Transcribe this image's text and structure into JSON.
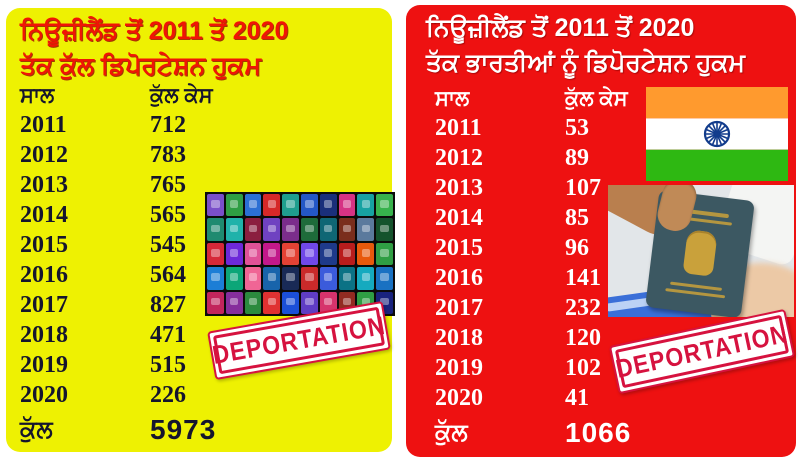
{
  "left_panel": {
    "title_line1": "ਨਿਊਜ਼ੀਲੈਂਡ ਤੋਂ 2011 ਤੋਂ 2020",
    "title_line2": "ਤੱਕ ਕੁੱਲ ਡਿਪੋਰਟੇਸ਼ਨ ਹੁਕਮ",
    "col_year": "ਸਾਲ",
    "col_cases": "ਕੁੱਲ ਕੇਸ",
    "rows": [
      {
        "year": "2011",
        "cases": "712"
      },
      {
        "year": "2012",
        "cases": "783"
      },
      {
        "year": "2013",
        "cases": "765"
      },
      {
        "year": "2014",
        "cases": "565"
      },
      {
        "year": "2015",
        "cases": "545"
      },
      {
        "year": "2016",
        "cases": "564"
      },
      {
        "year": "2017",
        "cases": "827"
      },
      {
        "year": "2018",
        "cases": "471"
      },
      {
        "year": "2019",
        "cases": "515"
      },
      {
        "year": "2020",
        "cases": "226"
      }
    ],
    "total_label": "ਕੁੱਲ",
    "total_value": "5973",
    "stamp_text": "DEPORTATION",
    "bg_color": "#eef102",
    "title_color": "#f01505",
    "text_color": "#15152e"
  },
  "right_panel": {
    "title_line1": "ਨਿਊਜ਼ੀਲੈਂਡ ਤੋਂ 2011 ਤੋਂ 2020",
    "title_line2": "ਤੱਕ ਭਾਰਤੀਆਂ ਨੂੰ ਡਿਪੋਰਟੇਸ਼ਨ ਹੁਕਮ",
    "col_year": "ਸਾਲ",
    "col_cases": "ਕੁੱਲ ਕੇਸ",
    "rows": [
      {
        "year": "2011",
        "cases": "53"
      },
      {
        "year": "2012",
        "cases": "89"
      },
      {
        "year": "2013",
        "cases": "107"
      },
      {
        "year": "2014",
        "cases": "85"
      },
      {
        "year": "2015",
        "cases": "96"
      },
      {
        "year": "2016",
        "cases": "141"
      },
      {
        "year": "2017",
        "cases": "232"
      },
      {
        "year": "2018",
        "cases": "120"
      },
      {
        "year": "2019",
        "cases": "102"
      },
      {
        "year": "2020",
        "cases": "41"
      }
    ],
    "total_label": "ਕੁੱਲ",
    "total_value": "1066",
    "stamp_text": "DEPORTATION",
    "bg_color": "#ee1111",
    "title_color": "#ffffff",
    "text_color": "#ffffff"
  },
  "stamp_color": "#d6123f",
  "flag_colors": {
    "saffron": "#ff9a2e",
    "white": "#ffffff",
    "green": "#2eb812",
    "chakra": "#123c8c"
  },
  "passport_grid_colors": [
    "#7a4fc9",
    "#2f9e44",
    "#2b6fd4",
    "#d62828",
    "#1f9e8e",
    "#2457c5",
    "#1a2f7a",
    "#d63384",
    "#17a2a2",
    "#37b24d",
    "#1f8a70",
    "#20b2aa",
    "#8b1e3f",
    "#6f42c1",
    "#7b2d8b",
    "#1e6b3a",
    "#0f6674",
    "#7a2e1d",
    "#5b7a9d",
    "#14532d",
    "#d62839",
    "#6d28d9",
    "#e05297",
    "#c2188a",
    "#e34234",
    "#7048e8",
    "#1e3a8a",
    "#b91c1c",
    "#e8590c",
    "#2f9e44",
    "#1c7ed6",
    "#0ca678",
    "#f06595",
    "#1864ab",
    "#192a56",
    "#c92a2a",
    "#3b5bdb",
    "#0b7285",
    "#15aabf",
    "#1971c2",
    "#c2255c",
    "#862e9c",
    "#2b8a3e",
    "#e03131",
    "#1b4fd8",
    "#5f3dc4",
    "#d6336c",
    "#922b21",
    "#2f9e44",
    "#1a237e"
  ],
  "chart_data": [
    {
      "type": "table",
      "title": "ਨਿਊਜ਼ੀਲੈਂਡ ਤੋਂ 2011 ਤੋਂ 2020 ਤੱਕ ਕੁੱਲ ਡਿਪੋਰਟੇਸ਼ਨ ਹੁਕਮ",
      "columns": [
        "ਸਾਲ",
        "ਕੁੱਲ ਕੇਸ"
      ],
      "categories": [
        "2011",
        "2012",
        "2013",
        "2014",
        "2015",
        "2016",
        "2017",
        "2018",
        "2019",
        "2020"
      ],
      "values": [
        712,
        783,
        765,
        565,
        545,
        564,
        827,
        471,
        515,
        226
      ],
      "total_label": "ਕੁੱਲ",
      "total": 5973
    },
    {
      "type": "table",
      "title": "ਨਿਊਜ਼ੀਲੈਂਡ ਤੋਂ 2011 ਤੋਂ 2020 ਤੱਕ ਭਾਰਤੀਆਂ ਨੂੰ ਡਿਪੋਰਟੇਸ਼ਨ ਹੁਕਮ",
      "columns": [
        "ਸਾਲ",
        "ਕੁੱਲ ਕੇਸ"
      ],
      "categories": [
        "2011",
        "2012",
        "2013",
        "2014",
        "2015",
        "2016",
        "2017",
        "2018",
        "2019",
        "2020"
      ],
      "values": [
        53,
        89,
        107,
        85,
        96,
        141,
        232,
        120,
        102,
        41
      ],
      "total_label": "ਕੁੱਲ",
      "total": 1066
    }
  ]
}
